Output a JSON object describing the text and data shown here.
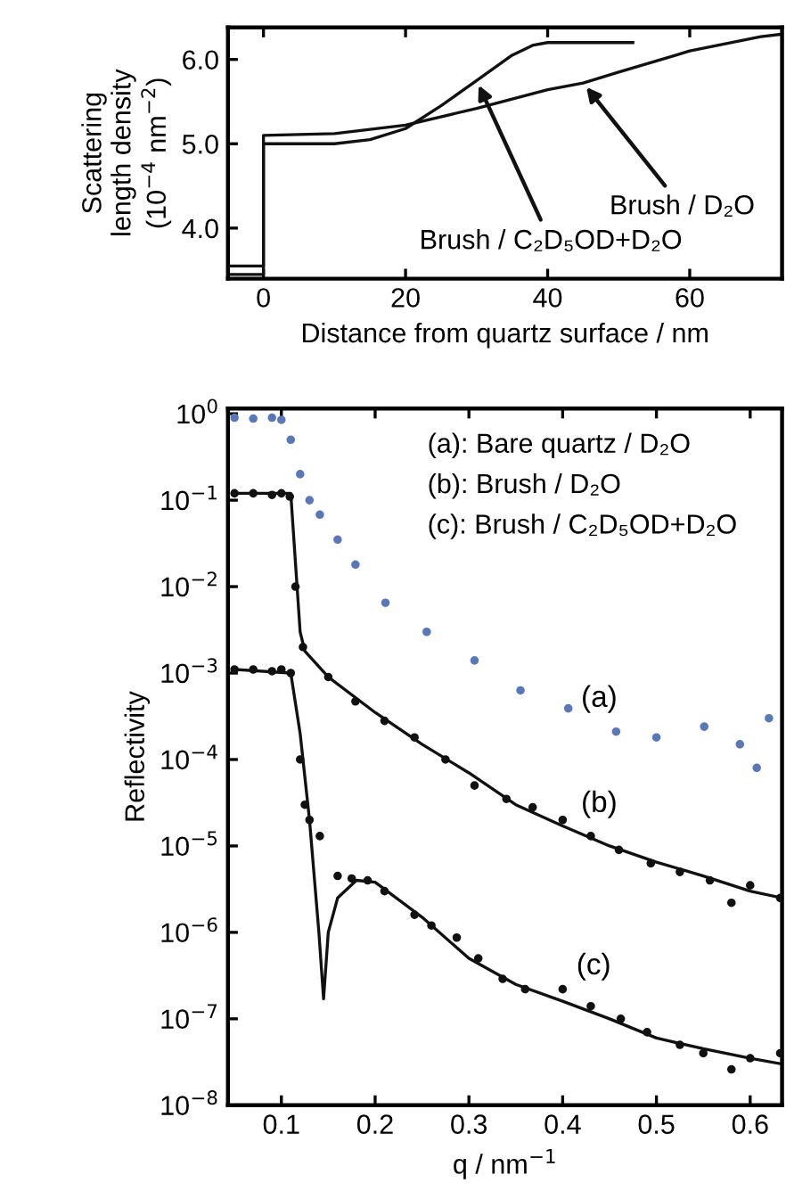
{
  "chart_data": [
    {
      "type": "line",
      "xlabel": "Distance from quartz surface / nm",
      "ylabel": "Scattering\nlength density\n(10$^{−4}$ nm$^{−2}$)",
      "series": [
        {
          "color": "#111111",
          "x": [
            -5,
            0,
            0,
            10,
            20,
            30,
            40,
            45,
            50,
            60,
            70,
            73
          ],
          "values": [
            3.45,
            3.45,
            5.1,
            5.12,
            5.22,
            5.42,
            5.64,
            5.72,
            5.85,
            6.1,
            6.27,
            6.3
          ]
        },
        {
          "color": "#111111",
          "x": [
            -5,
            0,
            0,
            10,
            15,
            20,
            25,
            30,
            35,
            38,
            40,
            52
          ],
          "values": [
            3.55,
            3.55,
            5.0,
            5.0,
            5.05,
            5.18,
            5.45,
            5.75,
            6.05,
            6.17,
            6.2,
            6.2
          ]
        }
      ],
      "annotations": [
        {
          "text": "Brush / D₂O",
          "x": 45,
          "y": 5.72
        },
        {
          "text": "Brush / C₂D₅OD+D₂O",
          "x": 30,
          "y": 5.75
        }
      ],
      "xlim": [
        -5,
        73
      ],
      "xticks": [
        0,
        20,
        40,
        60
      ],
      "ylim": [
        3.4,
        6.38
      ],
      "yticks": [
        {
          "value": 4.0,
          "label": "4.0"
        },
        {
          "value": 5.0,
          "label": "5.0"
        },
        {
          "value": 6.0,
          "label": "6.0"
        }
      ],
      "grid": false,
      "legend": false
    },
    {
      "type": "scatter",
      "xlabel": "q / nm$^{−1}$",
      "ylabel": "Reflectivity",
      "log": "y",
      "series": [
        {
          "type": "scatter",
          "marker": "circle",
          "color": "#5a78b8",
          "x": [
            0.05,
            0.07,
            0.09,
            0.1,
            0.11,
            0.12,
            0.13,
            0.141,
            0.16,
            0.179,
            0.211,
            0.255,
            0.306,
            0.355,
            0.406,
            0.457,
            0.5,
            0.551,
            0.589,
            0.607,
            0.62
          ],
          "values": [
            0.9,
            0.88,
            0.9,
            0.85,
            0.5,
            0.2,
            0.1,
            0.068,
            0.035,
            0.018,
            0.0065,
            0.003,
            0.0014,
            0.00063,
            0.00039,
            0.00021,
            0.00018,
            0.00024,
            0.00015,
            8e-05,
            0.0003
          ]
        },
        {
          "type": "scatter",
          "marker": "circle",
          "color": "#111111",
          "x": [
            0.05,
            0.07,
            0.09,
            0.1,
            0.109,
            0.115,
            0.123,
            0.15,
            0.179,
            0.21,
            0.242,
            0.275,
            0.306,
            0.34,
            0.368,
            0.4,
            0.43,
            0.46,
            0.494,
            0.525,
            0.557,
            0.58,
            0.6,
            0.632
          ],
          "values": [
            0.12,
            0.12,
            0.115,
            0.12,
            0.11,
            0.01,
            0.002,
            0.0009,
            0.00047,
            0.00028,
            0.00018,
            0.0001,
            5e-05,
            3.5e-05,
            2.8e-05,
            2e-05,
            1.3e-05,
            9e-06,
            6.3e-06,
            5e-06,
            4e-06,
            2.2e-06,
            3.5e-06,
            2.5e-06
          ]
        },
        {
          "type": "line",
          "color": "#111111",
          "x": [
            0.05,
            0.11,
            0.12,
            0.125,
            0.15,
            0.2,
            0.25,
            0.3,
            0.35,
            0.4,
            0.45,
            0.5,
            0.55,
            0.6,
            0.634
          ],
          "values": [
            0.12,
            0.12,
            0.003,
            0.0018,
            0.0009,
            0.00035,
            0.00015,
            7e-05,
            3e-05,
            1.7e-05,
            1e-05,
            6.5e-06,
            4.5e-06,
            3e-06,
            2.5e-06
          ]
        },
        {
          "type": "scatter",
          "marker": "circle",
          "color": "#111111",
          "x": [
            0.05,
            0.07,
            0.09,
            0.1,
            0.11,
            0.12,
            0.125,
            0.13,
            0.141,
            0.16,
            0.175,
            0.192,
            0.21,
            0.242,
            0.26,
            0.287,
            0.31,
            0.336,
            0.36,
            0.4,
            0.43,
            0.462,
            0.49,
            0.525,
            0.55,
            0.58,
            0.6,
            0.632
          ],
          "values": [
            0.0011,
            0.0011,
            0.00105,
            0.0011,
            0.001,
            0.0001,
            3e-05,
            2e-05,
            1.3e-05,
            4.5e-06,
            4.2e-06,
            4e-06,
            3e-06,
            1.6e-06,
            1.2e-06,
            8.7e-07,
            5e-07,
            2.9e-07,
            2.2e-07,
            2.2e-07,
            1.4e-07,
            1e-07,
            7e-08,
            5e-08,
            4e-08,
            2.6e-08,
            3.5e-08,
            4e-08
          ]
        },
        {
          "type": "line",
          "color": "#111111",
          "x": [
            0.05,
            0.11,
            0.12,
            0.13,
            0.14,
            0.145,
            0.15,
            0.16,
            0.18,
            0.2,
            0.25,
            0.3,
            0.35,
            0.4,
            0.45,
            0.5,
            0.55,
            0.6,
            0.634
          ],
          "values": [
            0.0011,
            0.001,
            0.0002,
            2e-05,
            1e-06,
            1.7e-07,
            1e-06,
            2.5e-06,
            4e-06,
            3.8e-06,
            1.5e-06,
            5e-07,
            2.5e-07,
            1.6e-07,
            1e-07,
            6e-08,
            4.5e-08,
            3.5e-08,
            3e-08
          ]
        }
      ],
      "annotations": [
        "(a): Bare quartz / D₂O",
        "(b): Brush / D₂O",
        "(c): Brush / C₂D₅OD+D₂O",
        "(a)",
        "(b)",
        "(c)"
      ],
      "xlim": [
        0.043,
        0.634
      ],
      "xticks": [
        0.1,
        0.2,
        0.3,
        0.4,
        0.5,
        0.6
      ],
      "ylim": [
        1e-08,
        1.15
      ],
      "yticks": [
        {
          "value": 1,
          "label": "10$^{0}$"
        },
        {
          "value": 0.1,
          "label": "10$^{−1}$"
        },
        {
          "value": 0.01,
          "label": "10$^{−2}$"
        },
        {
          "value": 0.001,
          "label": "10$^{−3}$"
        },
        {
          "value": 0.0001,
          "label": "10$^{−4}$"
        },
        {
          "value": 1e-05,
          "label": "10$^{−5}$"
        },
        {
          "value": 1e-06,
          "label": "10$^{−6}$"
        },
        {
          "value": 1e-07,
          "label": "10$^{−7}$"
        },
        {
          "value": 1e-08,
          "label": "10$^{−8}$"
        }
      ],
      "grid": false,
      "legend": false
    }
  ]
}
